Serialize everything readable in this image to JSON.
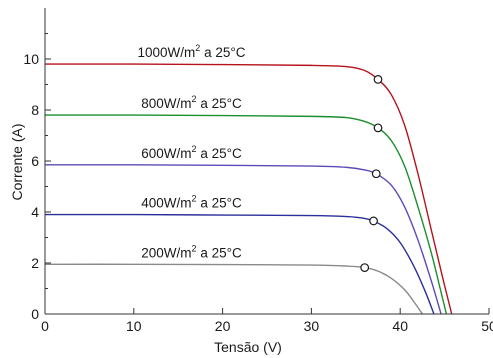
{
  "chart_data": {
    "type": "line",
    "title": "",
    "xlabel": "Tensão (V)",
    "ylabel": "Corrente (A)",
    "xlim": [
      0,
      50
    ],
    "ylim": [
      0,
      12
    ],
    "xticks": [
      "0",
      "10",
      "20",
      "30",
      "40",
      "50"
    ],
    "yticks": [
      "0",
      "2",
      "4",
      "6",
      "8",
      "10"
    ],
    "grid": false,
    "colors": {
      "1000": "#b5121b",
      "800": "#1a8f2e",
      "600": "#5b4bb8",
      "400": "#2a2f9a",
      "200": "#8a8a8a",
      "axis": "#333333"
    },
    "series": [
      {
        "name": "1000W/m² a 25°C",
        "label_main": "1000W/m",
        "label_sup": "2",
        "label_tail": " a 25°C",
        "color_key": "1000",
        "isc": 9.8,
        "voc": 45.8,
        "points": [
          [
            0,
            9.8
          ],
          [
            10,
            9.8
          ],
          [
            20,
            9.78
          ],
          [
            30,
            9.75
          ],
          [
            34,
            9.7
          ],
          [
            36,
            9.55
          ],
          [
            37.5,
            9.2
          ],
          [
            39,
            8.6
          ],
          [
            40.5,
            7.4
          ],
          [
            42,
            5.5
          ],
          [
            43.5,
            3.3
          ],
          [
            44.8,
            1.4
          ],
          [
            45.8,
            0
          ]
        ],
        "mpp": [
          37.5,
          9.2
        ]
      },
      {
        "name": "800W/m² a 25°C",
        "label_main": "800W/m",
        "label_sup": "2",
        "label_tail": " a 25°C",
        "color_key": "800",
        "isc": 7.8,
        "voc": 45.2,
        "points": [
          [
            0,
            7.8
          ],
          [
            10,
            7.8
          ],
          [
            20,
            7.78
          ],
          [
            30,
            7.75
          ],
          [
            34,
            7.7
          ],
          [
            36,
            7.55
          ],
          [
            37.5,
            7.3
          ],
          [
            39,
            6.8
          ],
          [
            40.5,
            5.8
          ],
          [
            42,
            4.2
          ],
          [
            43.5,
            2.4
          ],
          [
            44.5,
            1.0
          ],
          [
            45.2,
            0
          ]
        ],
        "mpp": [
          37.5,
          7.3
        ]
      },
      {
        "name": "600W/m² a 25°C",
        "label_main": "600W/m",
        "label_sup": "2",
        "label_tail": " a 25°C",
        "color_key": "600",
        "isc": 5.85,
        "voc": 44.6,
        "points": [
          [
            0,
            5.85
          ],
          [
            10,
            5.85
          ],
          [
            20,
            5.83
          ],
          [
            30,
            5.8
          ],
          [
            34,
            5.75
          ],
          [
            36,
            5.65
          ],
          [
            37.3,
            5.5
          ],
          [
            39,
            5.05
          ],
          [
            40.5,
            4.2
          ],
          [
            42,
            2.9
          ],
          [
            43.5,
            1.3
          ],
          [
            44.6,
            0
          ]
        ],
        "mpp": [
          37.3,
          5.5
        ]
      },
      {
        "name": "400W/m² a 25°C",
        "label_main": "400W/m",
        "label_sup": "2",
        "label_tail": " a 25°C",
        "color_key": "400",
        "isc": 3.9,
        "voc": 43.8,
        "points": [
          [
            0,
            3.9
          ],
          [
            10,
            3.9
          ],
          [
            20,
            3.88
          ],
          [
            30,
            3.86
          ],
          [
            34,
            3.82
          ],
          [
            36,
            3.75
          ],
          [
            37,
            3.65
          ],
          [
            38.5,
            3.35
          ],
          [
            40,
            2.8
          ],
          [
            41.5,
            1.9
          ],
          [
            42.8,
            0.9
          ],
          [
            43.8,
            0
          ]
        ],
        "mpp": [
          37.0,
          3.65
        ]
      },
      {
        "name": "200W/m² a 25°C",
        "label_main": "200W/m",
        "label_sup": "2",
        "label_tail": " a 25°C",
        "color_key": "200",
        "isc": 1.95,
        "voc": 42.5,
        "points": [
          [
            0,
            1.95
          ],
          [
            10,
            1.95
          ],
          [
            20,
            1.94
          ],
          [
            30,
            1.92
          ],
          [
            34,
            1.88
          ],
          [
            36,
            1.82
          ],
          [
            37.5,
            1.68
          ],
          [
            39,
            1.4
          ],
          [
            40.5,
            0.95
          ],
          [
            41.6,
            0.45
          ],
          [
            42.5,
            0
          ]
        ],
        "mpp": [
          36.0,
          1.82
        ]
      }
    ]
  }
}
